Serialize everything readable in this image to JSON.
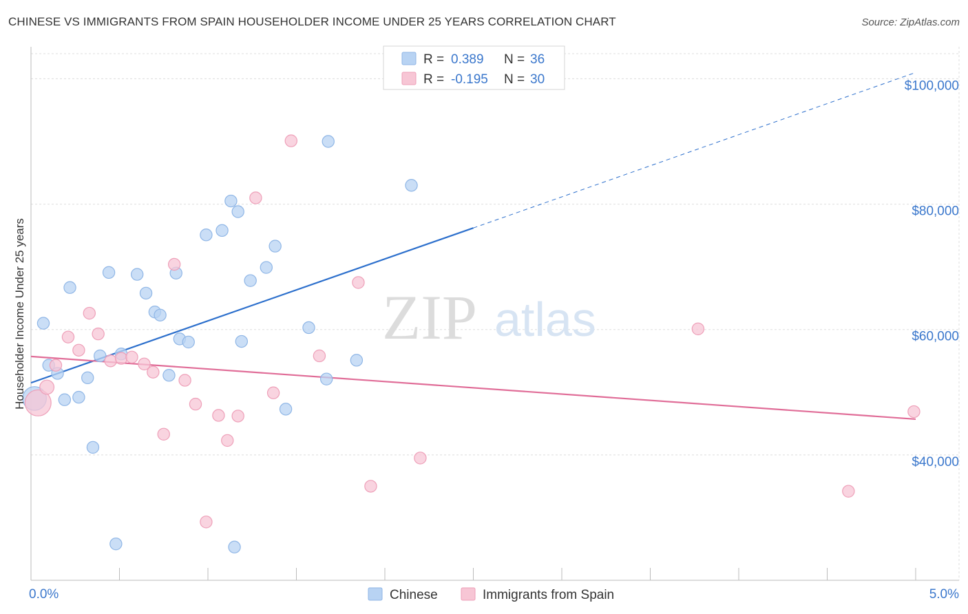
{
  "title": "CHINESE VS IMMIGRANTS FROM SPAIN HOUSEHOLDER INCOME UNDER 25 YEARS CORRELATION CHART",
  "source": "Source: ZipAtlas.com",
  "watermark": {
    "zip": "ZIP",
    "atlas": "atlas"
  },
  "colors": {
    "chinese_fill": "#b8d3f3",
    "chinese_stroke": "#8fb6e6",
    "chinese_line": "#2c6fcc",
    "spain_fill": "#f7c6d5",
    "spain_stroke": "#ee9fb8",
    "spain_line": "#e06c97",
    "axis_label": "#3a77cc",
    "grid": "#dddddd"
  },
  "legend": {
    "rows": [
      {
        "r_label": "R =",
        "r_value": "0.389",
        "n_label": "N =",
        "n_value": "36"
      },
      {
        "r_label": "R =",
        "r_value": "-0.195",
        "n_label": "N =",
        "n_value": "30"
      }
    ]
  },
  "chart_data": {
    "type": "scatter",
    "title": "CHINESE VS IMMIGRANTS FROM SPAIN HOUSEHOLDER INCOME UNDER 25 YEARS CORRELATION CHART",
    "xlabel": "",
    "ylabel": "Householder Income Under 25 years",
    "xlim": [
      0,
      5
    ],
    "ylim": [
      20000,
      104000
    ],
    "x_tick_labels": [
      "0.0%",
      "5.0%"
    ],
    "y_ticks": [
      40000,
      60000,
      80000,
      100000
    ],
    "y_tick_labels": [
      "$40,000",
      "$60,000",
      "$80,000",
      "$100,000"
    ],
    "grid": true,
    "legend_position": "top-center",
    "series": [
      {
        "name": "Chinese",
        "r": 0.389,
        "n": 36,
        "trend": {
          "x": [
            0.0,
            2.5
          ],
          "y": [
            51500,
            76200
          ],
          "dashed_to": [
            5.0,
            101000
          ]
        },
        "points": [
          [
            0.02,
            49000,
            20
          ],
          [
            0.07,
            61000,
            10
          ],
          [
            0.1,
            54300,
            10
          ],
          [
            0.15,
            53000,
            10
          ],
          [
            0.19,
            48800,
            10
          ],
          [
            0.22,
            66700,
            10
          ],
          [
            0.27,
            49200,
            10
          ],
          [
            0.32,
            52300,
            10
          ],
          [
            0.35,
            41200,
            10
          ],
          [
            0.39,
            55800,
            10
          ],
          [
            0.44,
            69100,
            10
          ],
          [
            0.48,
            25800,
            10
          ],
          [
            0.51,
            56100,
            10
          ],
          [
            0.6,
            68800,
            10
          ],
          [
            0.65,
            65800,
            10
          ],
          [
            0.7,
            62800,
            10
          ],
          [
            0.73,
            62300,
            10
          ],
          [
            0.78,
            52700,
            10
          ],
          [
            0.82,
            69000,
            10
          ],
          [
            0.84,
            58500,
            10
          ],
          [
            0.89,
            58000,
            10
          ],
          [
            0.99,
            75100,
            10
          ],
          [
            1.08,
            75800,
            10
          ],
          [
            1.13,
            80500,
            10
          ],
          [
            1.17,
            78800,
            10
          ],
          [
            1.19,
            58100,
            10
          ],
          [
            1.24,
            67800,
            10
          ],
          [
            1.33,
            69900,
            10
          ],
          [
            1.38,
            73300,
            10
          ],
          [
            1.44,
            47300,
            10
          ],
          [
            1.57,
            60300,
            10
          ],
          [
            1.68,
            90000,
            10
          ],
          [
            1.67,
            52100,
            10
          ],
          [
            1.84,
            55100,
            10
          ],
          [
            2.15,
            83000,
            10
          ],
          [
            1.15,
            25300,
            10
          ]
        ]
      },
      {
        "name": "Immigrants from Spain",
        "r": -0.195,
        "n": 30,
        "trend": {
          "x": [
            0.0,
            5.0
          ],
          "y": [
            55700,
            45700
          ]
        },
        "points": [
          [
            0.04,
            48300,
            22
          ],
          [
            0.09,
            50800,
            12
          ],
          [
            0.14,
            54300,
            10
          ],
          [
            0.21,
            58800,
            10
          ],
          [
            0.27,
            56700,
            10
          ],
          [
            0.33,
            62600,
            10
          ],
          [
            0.38,
            59300,
            10
          ],
          [
            0.45,
            55000,
            10
          ],
          [
            0.51,
            55400,
            10
          ],
          [
            0.57,
            55600,
            10
          ],
          [
            0.64,
            54500,
            10
          ],
          [
            0.69,
            53200,
            10
          ],
          [
            0.75,
            43300,
            10
          ],
          [
            0.81,
            70400,
            10
          ],
          [
            0.87,
            51900,
            10
          ],
          [
            0.93,
            48100,
            10
          ],
          [
            0.99,
            29300,
            10
          ],
          [
            1.06,
            46300,
            10
          ],
          [
            1.11,
            42300,
            10
          ],
          [
            1.17,
            46200,
            10
          ],
          [
            1.27,
            81000,
            10
          ],
          [
            1.37,
            49900,
            10
          ],
          [
            1.47,
            90100,
            10
          ],
          [
            1.63,
            55800,
            10
          ],
          [
            1.85,
            67500,
            10
          ],
          [
            1.92,
            35000,
            10
          ],
          [
            2.2,
            39500,
            10
          ],
          [
            3.77,
            60100,
            10
          ],
          [
            4.62,
            34200,
            10
          ],
          [
            4.99,
            46900,
            10
          ]
        ]
      }
    ]
  }
}
